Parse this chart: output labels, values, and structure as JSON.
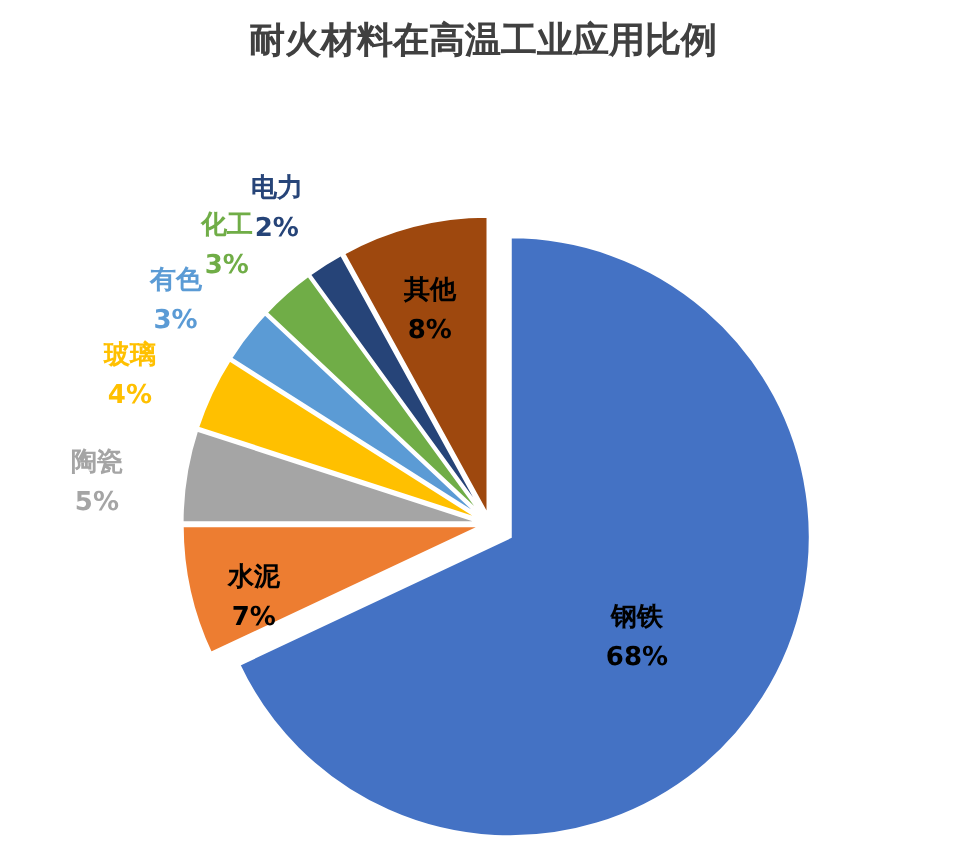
{
  "chart_data": {
    "type": "pie",
    "title": "耐火材料在高温工业应用比例",
    "categories": [
      "钢铁",
      "水泥",
      "陶瓷",
      "玻璃",
      "有色",
      "化工",
      "电力",
      "其他"
    ],
    "values": [
      68,
      7,
      5,
      4,
      3,
      3,
      2,
      8
    ],
    "value_labels": [
      "68%",
      "7%",
      "5%",
      "4%",
      "3%",
      "3%",
      "2%",
      "8%"
    ],
    "colors": [
      "#4472c4",
      "#ed7d31",
      "#a5a5a5",
      "#ffc000",
      "#5b9bd5",
      "#70ad47",
      "#264478",
      "#9e480e"
    ]
  }
}
